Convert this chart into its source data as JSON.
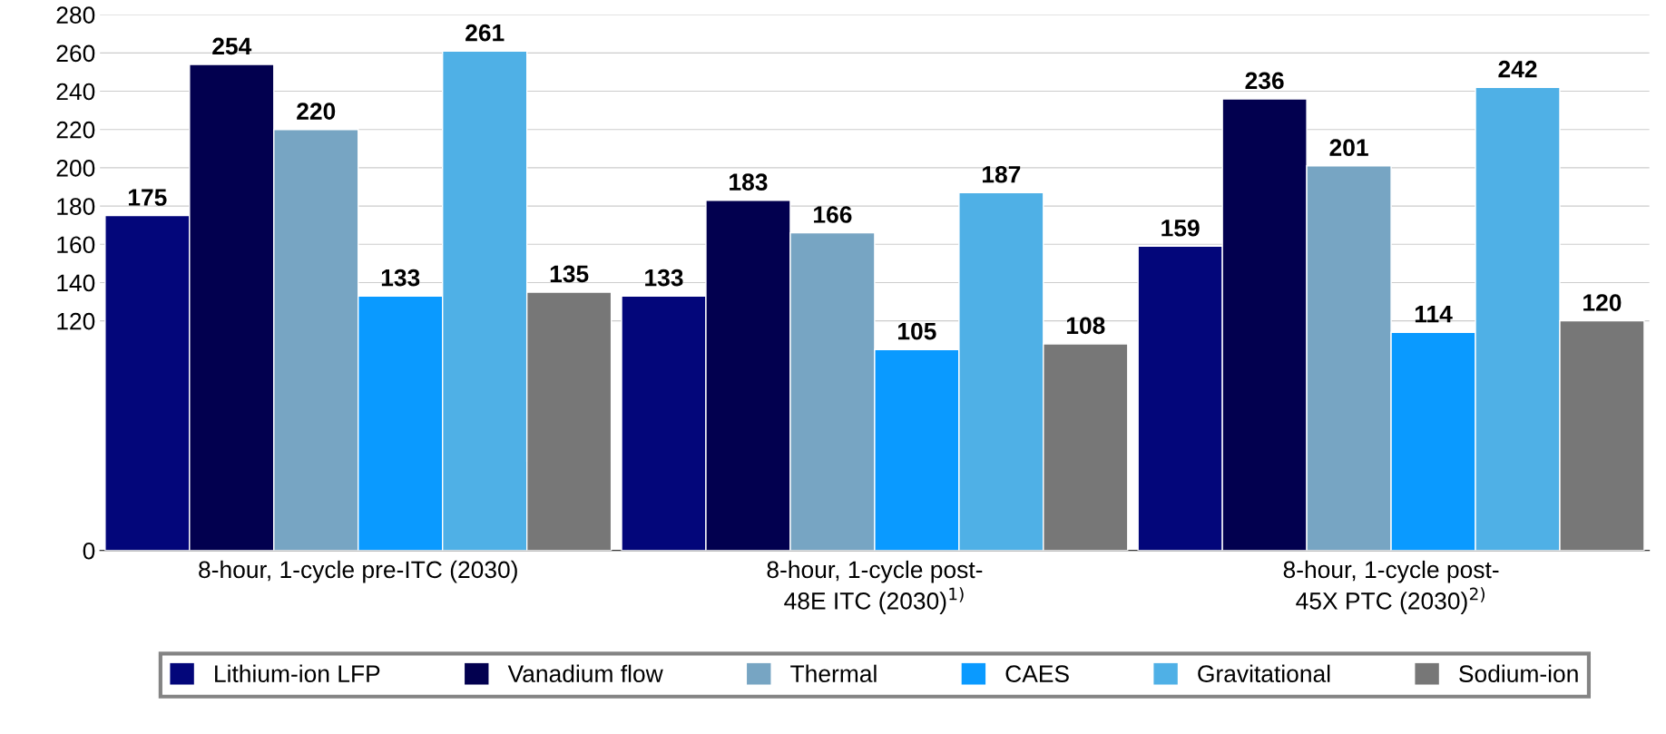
{
  "chart_data": {
    "type": "bar",
    "categories": [
      "8-hour, 1-cycle pre-ITC (2030)",
      "8-hour, 1-cycle post-\n48E ITC (2030)$^{1)}$",
      "8-hour, 1-cycle post-\n45X PTC (2030)$^{2)}$"
    ],
    "series": [
      {
        "name": "Lithium-ion LFP",
        "color": "#03067a",
        "values": [
          175,
          133,
          159
        ]
      },
      {
        "name": "Vanadium flow",
        "color": "#02004f",
        "values": [
          254,
          183,
          236
        ]
      },
      {
        "name": "Thermal",
        "color": "#77a5c3",
        "values": [
          220,
          166,
          201
        ]
      },
      {
        "name": "CAES",
        "color": "#0a9aff",
        "values": [
          133,
          105,
          114
        ]
      },
      {
        "name": "Gravitational",
        "color": "#4fb0e6",
        "values": [
          261,
          187,
          242
        ]
      },
      {
        "name": "Sodium-ion",
        "color": "#777777",
        "values": [
          135,
          108,
          120
        ]
      }
    ],
    "ylim": [
      0,
      280
    ],
    "yticks": [
      0,
      120,
      140,
      160,
      180,
      200,
      220,
      240,
      260,
      280
    ],
    "grid": "y",
    "legend": "bottom",
    "data_labels": true
  }
}
